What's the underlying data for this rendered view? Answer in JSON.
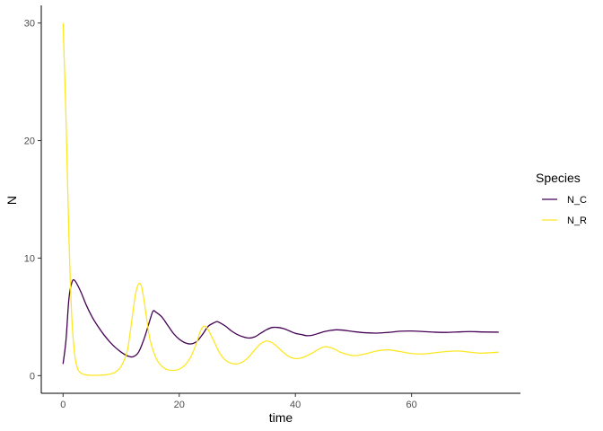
{
  "chart_data": {
    "type": "line",
    "xlabel": "time",
    "ylabel": "N",
    "xlim": [
      -3.75,
      78.75
    ],
    "ylim": [
      -1.5,
      31.5
    ],
    "x_ticks": [
      0,
      20,
      40,
      60
    ],
    "y_ticks": [
      0,
      10,
      20,
      30
    ],
    "grid": false,
    "legend": {
      "title": "Species",
      "position": "right"
    },
    "series": [
      {
        "name": "N_C",
        "color": "#440154",
        "x": [
          0,
          0.5,
          1,
          1.5,
          2,
          3,
          4,
          5,
          6,
          7,
          8,
          9,
          10,
          11,
          12,
          13,
          14,
          15,
          15.5,
          16,
          17,
          18,
          19,
          20,
          21,
          22,
          23,
          24,
          25,
          26,
          26.5,
          27,
          28,
          29,
          30,
          31,
          32,
          33,
          34,
          35,
          36,
          37,
          38,
          39,
          40,
          41,
          42,
          43,
          44,
          45,
          46,
          47,
          48,
          50,
          52,
          54,
          56,
          58,
          60,
          62,
          64,
          66,
          68,
          70,
          72,
          75
        ],
        "y": [
          1.0,
          3.0,
          6.5,
          7.9,
          8.1,
          7.2,
          6.0,
          5.0,
          4.2,
          3.5,
          2.9,
          2.4,
          2.0,
          1.7,
          1.6,
          2.0,
          3.2,
          4.8,
          5.5,
          5.4,
          5.0,
          4.3,
          3.6,
          3.1,
          2.8,
          2.7,
          2.9,
          3.5,
          4.2,
          4.5,
          4.6,
          4.5,
          4.2,
          3.8,
          3.5,
          3.3,
          3.2,
          3.3,
          3.6,
          3.9,
          4.1,
          4.1,
          4.0,
          3.8,
          3.6,
          3.5,
          3.4,
          3.45,
          3.6,
          3.75,
          3.85,
          3.9,
          3.88,
          3.75,
          3.65,
          3.62,
          3.68,
          3.78,
          3.8,
          3.75,
          3.7,
          3.68,
          3.72,
          3.75,
          3.72,
          3.7
        ]
      },
      {
        "name": "N_R",
        "color": "#fde725",
        "x": [
          0,
          0.5,
          1,
          1.5,
          2,
          2.5,
          3,
          3.5,
          4,
          5,
          6,
          7,
          8,
          9,
          10,
          11,
          11.5,
          12,
          12.5,
          13,
          13.5,
          14,
          14.5,
          15,
          16,
          17,
          18,
          19,
          20,
          21,
          22,
          23,
          23.5,
          24,
          24.5,
          25,
          26,
          27,
          28,
          29,
          30,
          31,
          32,
          33,
          34,
          35,
          36,
          37,
          38,
          39,
          40,
          41,
          42,
          43,
          44,
          45,
          46,
          47,
          48,
          50,
          52,
          54,
          56,
          58,
          60,
          62,
          64,
          66,
          68,
          70,
          72,
          75
        ],
        "y": [
          30.0,
          22.0,
          12.0,
          5.0,
          1.8,
          0.6,
          0.25,
          0.12,
          0.06,
          0.03,
          0.03,
          0.06,
          0.12,
          0.3,
          0.8,
          2.0,
          3.5,
          5.3,
          7.0,
          7.8,
          7.6,
          6.2,
          4.5,
          3.0,
          1.5,
          0.8,
          0.5,
          0.45,
          0.55,
          0.9,
          1.6,
          2.8,
          3.6,
          4.1,
          4.2,
          3.9,
          2.9,
          1.9,
          1.3,
          1.05,
          1.0,
          1.2,
          1.6,
          2.2,
          2.7,
          2.95,
          2.8,
          2.4,
          1.95,
          1.6,
          1.45,
          1.5,
          1.7,
          1.95,
          2.25,
          2.45,
          2.4,
          2.2,
          1.95,
          1.7,
          1.85,
          2.1,
          2.2,
          2.05,
          1.88,
          1.85,
          1.95,
          2.05,
          2.1,
          2.0,
          1.92,
          2.0
        ]
      }
    ]
  }
}
